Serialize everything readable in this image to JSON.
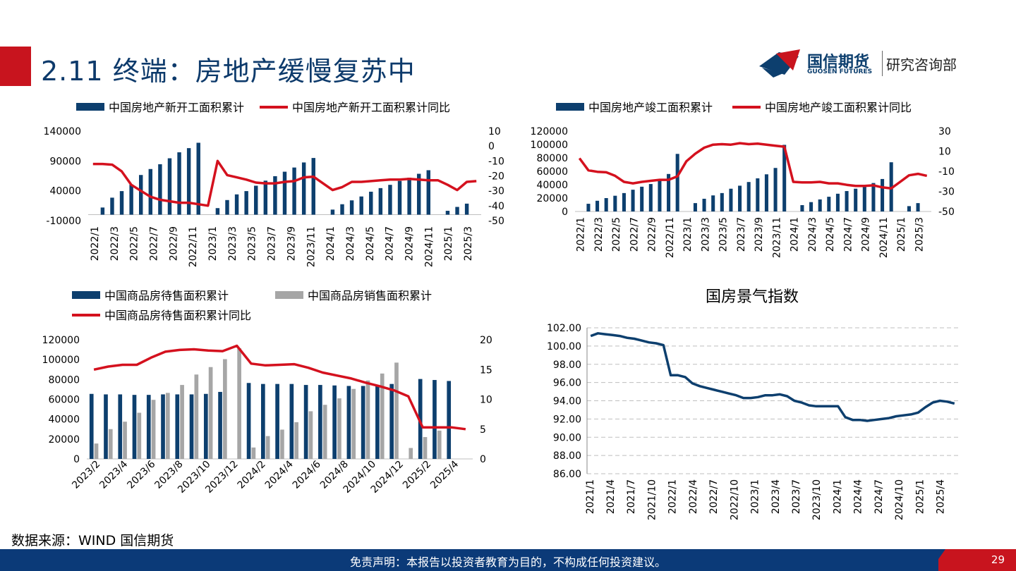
{
  "header": {
    "title": "2.11 终端：房地产缓慢复苏中",
    "logo_name": "国信期货",
    "logo_en": "GUOSEN FUTURES",
    "dept": "研究咨询部"
  },
  "source": "数据来源：WIND 国信期货",
  "footer": {
    "disclaimer": "免责声明：本报告以投资者教育为目的，不构成任何投资建议。",
    "page": "29"
  },
  "colors": {
    "navy": "#0d3f6e",
    "red": "#d4111e",
    "gray": "#a6a6a6"
  },
  "chart_data": [
    {
      "type": "bar",
      "legend": [
        "中国房地产新开工面积累计",
        "中国房地产新开工面积累计同比"
      ],
      "x_tick_labels": [
        "2022/1",
        "2022/3",
        "2022/5",
        "2022/7",
        "2022/9",
        "2022/11",
        "2023/1",
        "2023/3",
        "2023/5",
        "2023/7",
        "2023/9",
        "2023/11",
        "2024/1",
        "2024/3",
        "2024/5",
        "2024/7",
        "2024/9",
        "2024/11",
        "2025/1",
        "2025/3"
      ],
      "y_ticks": [
        "140000",
        "90000",
        "40000",
        "-10000"
      ],
      "y2_ticks": [
        "10",
        "0",
        "-10",
        "-20",
        "-30",
        "-40",
        "-50"
      ],
      "ylim": [
        -10000,
        140000
      ],
      "y2lim": [
        -50,
        10
      ],
      "series": [
        {
          "name": "中国房地产新开工面积累计",
          "kind": "bar",
          "values": [
            null,
            12000,
            28500,
            39500,
            50500,
            66500,
            76500,
            84500,
            94500,
            104500,
            111500,
            120500,
            null,
            11000,
            24500,
            34000,
            39500,
            48500,
            57000,
            64500,
            72000,
            79000,
            87500,
            95000,
            null,
            8500,
            17500,
            24000,
            30500,
            38500,
            44500,
            50000,
            56500,
            62000,
            68500,
            74500,
            null,
            6500,
            13000,
            18500
          ],
          "color": "#0d3f6e"
        },
        {
          "name": "中国房地产新开工面积累计同比",
          "kind": "line",
          "values": [
            -12,
            -12,
            -12.5,
            -17,
            -26,
            -30,
            -34,
            -36,
            -37,
            -38,
            -38,
            -39,
            -40,
            -10,
            -19.5,
            -21,
            -22.5,
            -24.5,
            -25,
            -25,
            -24,
            -23.5,
            -21,
            -20.5,
            -25,
            -29.5,
            -27.5,
            -24,
            -24,
            -23.5,
            -23,
            -22.5,
            -22.5,
            -22,
            -22.5,
            -23,
            -23,
            -26,
            -29.5,
            -24,
            -23.5
          ],
          "color": "#d4111e"
        }
      ]
    },
    {
      "type": "bar",
      "legend": [
        "中国房地产竣工面积累计",
        "中国房地产竣工面积累计同比"
      ],
      "x_tick_labels": [
        "2022/1",
        "2022/3",
        "2022/5",
        "2022/7",
        "2022/9",
        "2022/11",
        "2023/1",
        "2023/3",
        "2023/5",
        "2023/7",
        "2023/9",
        "2023/11",
        "2024/1",
        "2024/3",
        "2024/5",
        "2024/7",
        "2024/9",
        "2024/11",
        "2025/1",
        "2025/3"
      ],
      "y_ticks": [
        "120000",
        "100000",
        "80000",
        "60000",
        "40000",
        "20000",
        "0"
      ],
      "y2_ticks": [
        "30",
        "10",
        "-10",
        "-30",
        "-50"
      ],
      "ylim": [
        0,
        120000
      ],
      "y2lim": [
        -50,
        30
      ],
      "series": [
        {
          "name": "中国房地产竣工面积累计",
          "kind": "bar",
          "values": [
            null,
            11500,
            16000,
            20000,
            23500,
            27500,
            32500,
            37000,
            41000,
            46000,
            56000,
            86000,
            null,
            12500,
            19000,
            24000,
            27500,
            34000,
            38500,
            44000,
            49500,
            55500,
            65000,
            99500,
            null,
            9500,
            14000,
            18000,
            22000,
            26500,
            30500,
            34000,
            38000,
            42500,
            48500,
            73500,
            null,
            8000,
            12500
          ],
          "color": "#0d3f6e"
        },
        {
          "name": "中国房地产竣工面积累计同比",
          "kind": "line",
          "values": [
            3,
            -9,
            -10.5,
            -11,
            -14.5,
            -20.5,
            -22,
            -20.5,
            -19.5,
            -18.5,
            -18.5,
            -15,
            0,
            7.5,
            13.5,
            16.5,
            17,
            16.5,
            18,
            17,
            17.5,
            16.5,
            15.5,
            14.5,
            -20.5,
            -21,
            -21,
            -20.5,
            -22,
            -22,
            -23.5,
            -24.5,
            -24.5,
            -24,
            -26,
            -27,
            -20.5,
            -14,
            -12.5,
            -14.5
          ],
          "color": "#d4111e"
        }
      ]
    },
    {
      "type": "bar",
      "legend": [
        "中国商品房待售面积累计",
        "中国商品房销售面积累计",
        "中国商品房待售面积累计同比"
      ],
      "x_tick_labels": [
        "2023/2",
        "2023/4",
        "2023/6",
        "2023/8",
        "2023/10",
        "2023/12",
        "2024/2",
        "2024/4",
        "2024/6",
        "2024/8",
        "2024/10",
        "2024/12",
        "2025/2",
        "2025/4"
      ],
      "y_ticks": [
        "120000",
        "100000",
        "80000",
        "60000",
        "40000",
        "20000",
        "0"
      ],
      "y2_ticks": [
        "20",
        "15",
        "10",
        "5",
        "0"
      ],
      "ylim": [
        0,
        120000
      ],
      "y2lim": [
        0,
        20
      ],
      "series": [
        {
          "name": "中国商品房待售面积累计",
          "kind": "bar",
          "values": [
            65500,
            65000,
            65000,
            64500,
            64500,
            65000,
            65000,
            65000,
            65500,
            67500,
            null,
            76500,
            75500,
            75500,
            75500,
            74500,
            74500,
            74000,
            73500,
            73500,
            74000,
            75500,
            null,
            80500,
            79500,
            78500
          ],
          "color": "#0d3f6e"
        },
        {
          "name": "中国商品房销售面积累计",
          "kind": "bar",
          "values": [
            15500,
            30000,
            37500,
            46500,
            59500,
            66500,
            74500,
            85000,
            92500,
            100500,
            111500,
            11500,
            23000,
            29500,
            37000,
            48000,
            54500,
            61000,
            70500,
            79000,
            86000,
            97000,
            11000,
            22000,
            28500
          ],
          "color": "#a6a6a6"
        },
        {
          "name": "中国商品房待售面积累计同比",
          "kind": "line",
          "values": [
            15,
            15.5,
            15.8,
            15.8,
            17,
            18,
            18.3,
            18.4,
            18.2,
            18.1,
            19,
            16,
            15.7,
            15.8,
            15.9,
            15.3,
            14.5,
            14,
            13.5,
            12.8,
            12.2,
            11.5,
            10.5,
            5.3,
            5.3,
            5.3,
            5
          ],
          "color": "#d4111e"
        }
      ]
    },
    {
      "type": "line",
      "title": "国房景气指数",
      "x_tick_labels": [
        "2021/1",
        "2021/4",
        "2021/7",
        "2021/10",
        "2022/1",
        "2022/4",
        "2022/7",
        "2022/10",
        "2023/1",
        "2023/4",
        "2023/7",
        "2023/10",
        "2024/1",
        "2024/4",
        "2024/7",
        "2024/10",
        "2025/1",
        "2025/4"
      ],
      "y_ticks": [
        "102.00",
        "100.00",
        "98.00",
        "96.00",
        "94.00",
        "92.00",
        "90.00",
        "88.00",
        "86.00"
      ],
      "ylim": [
        86,
        102
      ],
      "series": [
        {
          "name": "",
          "values": [
            101.1,
            101.4,
            101.3,
            101.2,
            101.1,
            100.9,
            100.8,
            100.6,
            100.4,
            100.3,
            100.1,
            96.8,
            96.8,
            96.6,
            95.9,
            95.6,
            95.4,
            95.2,
            95.0,
            94.8,
            94.6,
            94.3,
            94.3,
            94.4,
            94.6,
            94.6,
            94.7,
            94.5,
            94.0,
            93.8,
            93.5,
            93.4,
            93.4,
            93.4,
            93.4,
            92.2,
            91.9,
            91.9,
            91.8,
            91.9,
            92.0,
            92.1,
            92.3,
            92.4,
            92.5,
            92.7,
            93.3,
            93.8,
            94.0,
            93.9,
            93.7
          ],
          "color": "#0d3f6e"
        }
      ]
    }
  ]
}
